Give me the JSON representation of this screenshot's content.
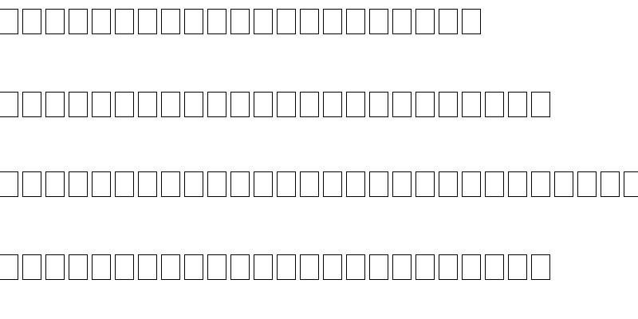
{
  "lines": [
    {
      "glyph_count": 21
    },
    {
      "glyph_count": 24
    },
    {
      "glyph_count": 28
    },
    {
      "glyph_count": 24
    }
  ],
  "colors": {
    "background": "#ffffff",
    "glyph_outline": "#000000"
  }
}
